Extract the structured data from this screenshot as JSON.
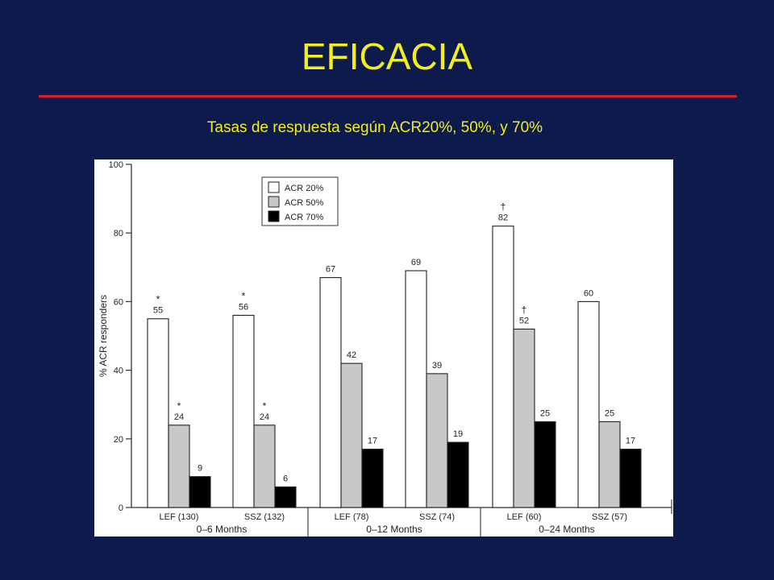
{
  "slide": {
    "title": "EFICACIA",
    "subtitle": "Tasas de respuesta según ACR20%, 50%, y 70%"
  },
  "colors": {
    "background": "#0c1a4c",
    "title": "#f4ef1a",
    "rule": "#d11f2c",
    "acr20": "#ffffff",
    "acr50": "#c8c8c8",
    "acr70": "#000000"
  },
  "chart_data": {
    "type": "bar",
    "ylabel": "% ACR responders",
    "xlabel": "",
    "ylim": [
      0,
      100
    ],
    "yticks": [
      0,
      20,
      40,
      60,
      80,
      100
    ],
    "categories": [
      "LEF (130)",
      "SSZ (132)",
      "LEF (78)",
      "SSZ (74)",
      "LEF (60)",
      "SSZ (57)"
    ],
    "groups": [
      {
        "label": "0–6 Months",
        "categories": [
          0,
          1
        ]
      },
      {
        "label": "0–12 Months",
        "categories": [
          2,
          3
        ]
      },
      {
        "label": "0–24 Months",
        "categories": [
          4,
          5
        ]
      }
    ],
    "series": [
      {
        "name": "ACR 20%",
        "color": "#ffffff",
        "values": [
          55,
          56,
          67,
          69,
          82,
          60
        ],
        "markers": [
          "*",
          "*",
          "",
          "",
          "†",
          ""
        ]
      },
      {
        "name": "ACR 50%",
        "color": "#c8c8c8",
        "values": [
          24,
          24,
          42,
          39,
          52,
          25
        ],
        "markers": [
          "*",
          "*",
          "",
          "",
          "†",
          ""
        ]
      },
      {
        "name": "ACR 70%",
        "color": "#000000",
        "values": [
          9,
          6,
          17,
          19,
          25,
          17
        ],
        "markers": [
          "",
          "",
          "",
          "",
          "",
          ""
        ]
      }
    ],
    "legend_position": "top-left",
    "grid": false
  }
}
